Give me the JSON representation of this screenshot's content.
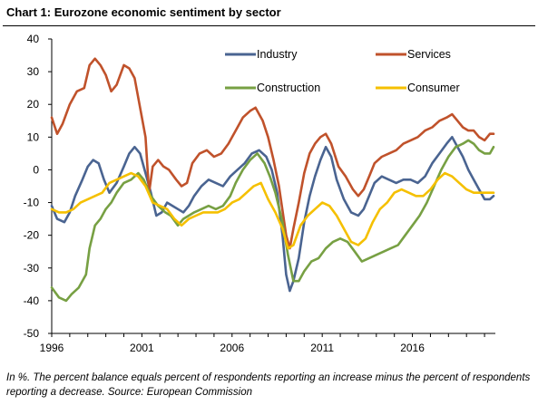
{
  "title": "Chart 1: Eurozone economic sentiment by sector",
  "footnote": "In %. The percent balance equals percent of respondents reporting an increase minus the percent of respondents reporting a decrease. Source: European Commission",
  "chart_data": {
    "type": "line",
    "title": "Chart 1: Eurozone economic sentiment by sector",
    "xlabel": "",
    "ylabel": "",
    "xlim": [
      1996,
      2020.6
    ],
    "ylim": [
      -50,
      40
    ],
    "x_ticks": [
      1996,
      2001,
      2006,
      2011,
      2016
    ],
    "y_ticks": [
      40,
      30,
      20,
      10,
      0,
      -10,
      -20,
      -30,
      -40,
      -50
    ],
    "grid": false,
    "legend_position": "top-right",
    "series": [
      {
        "name": "Industry",
        "color": "#4a6491",
        "points": [
          [
            1996.0,
            -11
          ],
          [
            1996.3,
            -15
          ],
          [
            1996.7,
            -16
          ],
          [
            1997.0,
            -13
          ],
          [
            1997.3,
            -8
          ],
          [
            1997.7,
            -3
          ],
          [
            1998.0,
            1
          ],
          [
            1998.3,
            3
          ],
          [
            1998.6,
            2
          ],
          [
            1998.9,
            -3
          ],
          [
            1999.2,
            -7
          ],
          [
            1999.6,
            -4
          ],
          [
            2000.0,
            1
          ],
          [
            2000.3,
            5
          ],
          [
            2000.6,
            7
          ],
          [
            2000.9,
            5
          ],
          [
            2001.2,
            -1
          ],
          [
            2001.5,
            -7
          ],
          [
            2001.8,
            -14
          ],
          [
            2002.1,
            -13
          ],
          [
            2002.4,
            -10
          ],
          [
            2002.7,
            -11
          ],
          [
            2003.0,
            -12
          ],
          [
            2003.3,
            -13
          ],
          [
            2003.6,
            -11
          ],
          [
            2003.9,
            -8
          ],
          [
            2004.3,
            -5
          ],
          [
            2004.7,
            -3
          ],
          [
            2005.1,
            -4
          ],
          [
            2005.5,
            -5
          ],
          [
            2005.9,
            -2
          ],
          [
            2006.3,
            0
          ],
          [
            2006.7,
            2
          ],
          [
            2007.1,
            5
          ],
          [
            2007.5,
            6
          ],
          [
            2007.9,
            4
          ],
          [
            2008.2,
            0
          ],
          [
            2008.5,
            -7
          ],
          [
            2008.8,
            -20
          ],
          [
            2009.0,
            -32
          ],
          [
            2009.2,
            -37
          ],
          [
            2009.4,
            -34
          ],
          [
            2009.7,
            -27
          ],
          [
            2010.0,
            -16
          ],
          [
            2010.3,
            -8
          ],
          [
            2010.6,
            -2
          ],
          [
            2010.9,
            3
          ],
          [
            2011.2,
            7
          ],
          [
            2011.5,
            4
          ],
          [
            2011.8,
            -3
          ],
          [
            2012.2,
            -9
          ],
          [
            2012.6,
            -13
          ],
          [
            2013.0,
            -14
          ],
          [
            2013.3,
            -12
          ],
          [
            2013.6,
            -8
          ],
          [
            2013.9,
            -4
          ],
          [
            2014.3,
            -2
          ],
          [
            2014.7,
            -3
          ],
          [
            2015.1,
            -4
          ],
          [
            2015.5,
            -3
          ],
          [
            2015.9,
            -3
          ],
          [
            2016.3,
            -4
          ],
          [
            2016.7,
            -2
          ],
          [
            2017.1,
            2
          ],
          [
            2017.5,
            5
          ],
          [
            2017.9,
            8
          ],
          [
            2018.2,
            10
          ],
          [
            2018.5,
            7
          ],
          [
            2018.8,
            4
          ],
          [
            2019.1,
            0
          ],
          [
            2019.4,
            -3
          ],
          [
            2019.7,
            -6
          ],
          [
            2020.0,
            -9
          ],
          [
            2020.3,
            -9
          ],
          [
            2020.5,
            -8
          ]
        ]
      },
      {
        "name": "Services",
        "color": "#c0522b",
        "points": [
          [
            1996.0,
            16
          ],
          [
            1996.3,
            11
          ],
          [
            1996.6,
            14
          ],
          [
            1997.0,
            20
          ],
          [
            1997.4,
            24
          ],
          [
            1997.8,
            25
          ],
          [
            1998.1,
            32
          ],
          [
            1998.4,
            34
          ],
          [
            1998.7,
            32
          ],
          [
            1999.0,
            29
          ],
          [
            1999.3,
            24
          ],
          [
            1999.6,
            26
          ],
          [
            2000.0,
            32
          ],
          [
            2000.3,
            31
          ],
          [
            2000.6,
            28
          ],
          [
            2000.9,
            19
          ],
          [
            2001.2,
            10
          ],
          [
            2001.4,
            -7
          ],
          [
            2001.6,
            1
          ],
          [
            2001.9,
            3
          ],
          [
            2002.2,
            1
          ],
          [
            2002.5,
            0
          ],
          [
            2002.9,
            -3
          ],
          [
            2003.2,
            -5
          ],
          [
            2003.5,
            -4
          ],
          [
            2003.8,
            2
          ],
          [
            2004.2,
            5
          ],
          [
            2004.6,
            6
          ],
          [
            2005.0,
            4
          ],
          [
            2005.4,
            5
          ],
          [
            2005.8,
            8
          ],
          [
            2006.2,
            12
          ],
          [
            2006.6,
            16
          ],
          [
            2007.0,
            18
          ],
          [
            2007.3,
            19
          ],
          [
            2007.7,
            15
          ],
          [
            2008.0,
            10
          ],
          [
            2008.3,
            3
          ],
          [
            2008.6,
            -5
          ],
          [
            2009.0,
            -20
          ],
          [
            2009.2,
            -24
          ],
          [
            2009.4,
            -18
          ],
          [
            2009.7,
            -10
          ],
          [
            2010.0,
            -1
          ],
          [
            2010.3,
            5
          ],
          [
            2010.6,
            8
          ],
          [
            2010.9,
            10
          ],
          [
            2011.2,
            11
          ],
          [
            2011.5,
            8
          ],
          [
            2011.9,
            1
          ],
          [
            2012.3,
            -2
          ],
          [
            2012.7,
            -6
          ],
          [
            2013.0,
            -8
          ],
          [
            2013.3,
            -6
          ],
          [
            2013.6,
            -2
          ],
          [
            2013.9,
            2
          ],
          [
            2014.3,
            4
          ],
          [
            2014.7,
            5
          ],
          [
            2015.1,
            6
          ],
          [
            2015.5,
            8
          ],
          [
            2015.9,
            9
          ],
          [
            2016.3,
            10
          ],
          [
            2016.7,
            12
          ],
          [
            2017.1,
            13
          ],
          [
            2017.5,
            15
          ],
          [
            2017.9,
            16
          ],
          [
            2018.2,
            17
          ],
          [
            2018.5,
            15
          ],
          [
            2018.8,
            13
          ],
          [
            2019.1,
            12
          ],
          [
            2019.4,
            12
          ],
          [
            2019.7,
            10
          ],
          [
            2020.0,
            9
          ],
          [
            2020.3,
            11
          ],
          [
            2020.5,
            11
          ]
        ]
      },
      {
        "name": "Construction",
        "color": "#77a043",
        "points": [
          [
            1996.0,
            -36
          ],
          [
            1996.4,
            -39
          ],
          [
            1996.8,
            -40
          ],
          [
            1997.1,
            -38
          ],
          [
            1997.5,
            -36
          ],
          [
            1997.9,
            -32
          ],
          [
            1998.1,
            -24
          ],
          [
            1998.4,
            -17
          ],
          [
            1998.7,
            -15
          ],
          [
            1999.0,
            -12
          ],
          [
            1999.3,
            -10
          ],
          [
            1999.6,
            -7
          ],
          [
            2000.0,
            -4
          ],
          [
            2000.4,
            -3
          ],
          [
            2000.8,
            -1
          ],
          [
            2001.1,
            -3
          ],
          [
            2001.5,
            -8
          ],
          [
            2001.9,
            -11
          ],
          [
            2002.3,
            -13
          ],
          [
            2002.6,
            -14
          ],
          [
            2003.0,
            -17
          ],
          [
            2003.3,
            -15
          ],
          [
            2003.6,
            -14
          ],
          [
            2003.9,
            -13
          ],
          [
            2004.3,
            -12
          ],
          [
            2004.7,
            -11
          ],
          [
            2005.1,
            -12
          ],
          [
            2005.5,
            -11
          ],
          [
            2005.9,
            -8
          ],
          [
            2006.2,
            -4
          ],
          [
            2006.6,
            0
          ],
          [
            2007.0,
            3
          ],
          [
            2007.4,
            5
          ],
          [
            2007.8,
            2
          ],
          [
            2008.1,
            -2
          ],
          [
            2008.4,
            -7
          ],
          [
            2008.8,
            -16
          ],
          [
            2009.1,
            -26
          ],
          [
            2009.4,
            -34
          ],
          [
            2009.7,
            -34
          ],
          [
            2010.0,
            -31
          ],
          [
            2010.4,
            -28
          ],
          [
            2010.8,
            -27
          ],
          [
            2011.2,
            -24
          ],
          [
            2011.6,
            -22
          ],
          [
            2012.0,
            -21
          ],
          [
            2012.4,
            -22
          ],
          [
            2012.8,
            -25
          ],
          [
            2013.2,
            -28
          ],
          [
            2013.6,
            -27
          ],
          [
            2014.0,
            -26
          ],
          [
            2014.4,
            -25
          ],
          [
            2014.8,
            -24
          ],
          [
            2015.2,
            -23
          ],
          [
            2015.6,
            -20
          ],
          [
            2016.0,
            -17
          ],
          [
            2016.4,
            -14
          ],
          [
            2016.8,
            -10
          ],
          [
            2017.2,
            -5
          ],
          [
            2017.6,
            0
          ],
          [
            2018.0,
            4
          ],
          [
            2018.4,
            7
          ],
          [
            2018.8,
            8
          ],
          [
            2019.1,
            9
          ],
          [
            2019.4,
            8
          ],
          [
            2019.7,
            6
          ],
          [
            2020.0,
            5
          ],
          [
            2020.3,
            5
          ],
          [
            2020.5,
            7
          ]
        ]
      },
      {
        "name": "Consumer",
        "color": "#f5c000",
        "points": [
          [
            1996.0,
            -12
          ],
          [
            1996.4,
            -13
          ],
          [
            1996.8,
            -13
          ],
          [
            1997.2,
            -12
          ],
          [
            1997.6,
            -10
          ],
          [
            1998.0,
            -9
          ],
          [
            1998.4,
            -8
          ],
          [
            1998.8,
            -7
          ],
          [
            1999.2,
            -4
          ],
          [
            1999.6,
            -3
          ],
          [
            2000.0,
            -2
          ],
          [
            2000.4,
            -1
          ],
          [
            2000.8,
            -2
          ],
          [
            2001.2,
            -5
          ],
          [
            2001.6,
            -10
          ],
          [
            2002.0,
            -11
          ],
          [
            2002.4,
            -12
          ],
          [
            2002.8,
            -15
          ],
          [
            2003.2,
            -17
          ],
          [
            2003.6,
            -15
          ],
          [
            2004.0,
            -14
          ],
          [
            2004.4,
            -13
          ],
          [
            2004.8,
            -13
          ],
          [
            2005.2,
            -13
          ],
          [
            2005.6,
            -12
          ],
          [
            2006.0,
            -10
          ],
          [
            2006.4,
            -9
          ],
          [
            2006.8,
            -7
          ],
          [
            2007.2,
            -5
          ],
          [
            2007.6,
            -4
          ],
          [
            2008.0,
            -9
          ],
          [
            2008.4,
            -13
          ],
          [
            2008.8,
            -18
          ],
          [
            2009.1,
            -24
          ],
          [
            2009.4,
            -23
          ],
          [
            2009.8,
            -17
          ],
          [
            2010.2,
            -14
          ],
          [
            2010.6,
            -12
          ],
          [
            2011.0,
            -10
          ],
          [
            2011.4,
            -11
          ],
          [
            2011.8,
            -14
          ],
          [
            2012.2,
            -18
          ],
          [
            2012.6,
            -22
          ],
          [
            2013.0,
            -23
          ],
          [
            2013.4,
            -21
          ],
          [
            2013.8,
            -16
          ],
          [
            2014.2,
            -12
          ],
          [
            2014.6,
            -10
          ],
          [
            2015.0,
            -7
          ],
          [
            2015.4,
            -6
          ],
          [
            2015.8,
            -7
          ],
          [
            2016.2,
            -8
          ],
          [
            2016.6,
            -8
          ],
          [
            2017.0,
            -6
          ],
          [
            2017.4,
            -3
          ],
          [
            2017.8,
            -1
          ],
          [
            2018.2,
            -2
          ],
          [
            2018.6,
            -4
          ],
          [
            2019.0,
            -6
          ],
          [
            2019.4,
            -7
          ],
          [
            2019.8,
            -7
          ],
          [
            2020.2,
            -7
          ],
          [
            2020.5,
            -7
          ]
        ]
      }
    ]
  }
}
